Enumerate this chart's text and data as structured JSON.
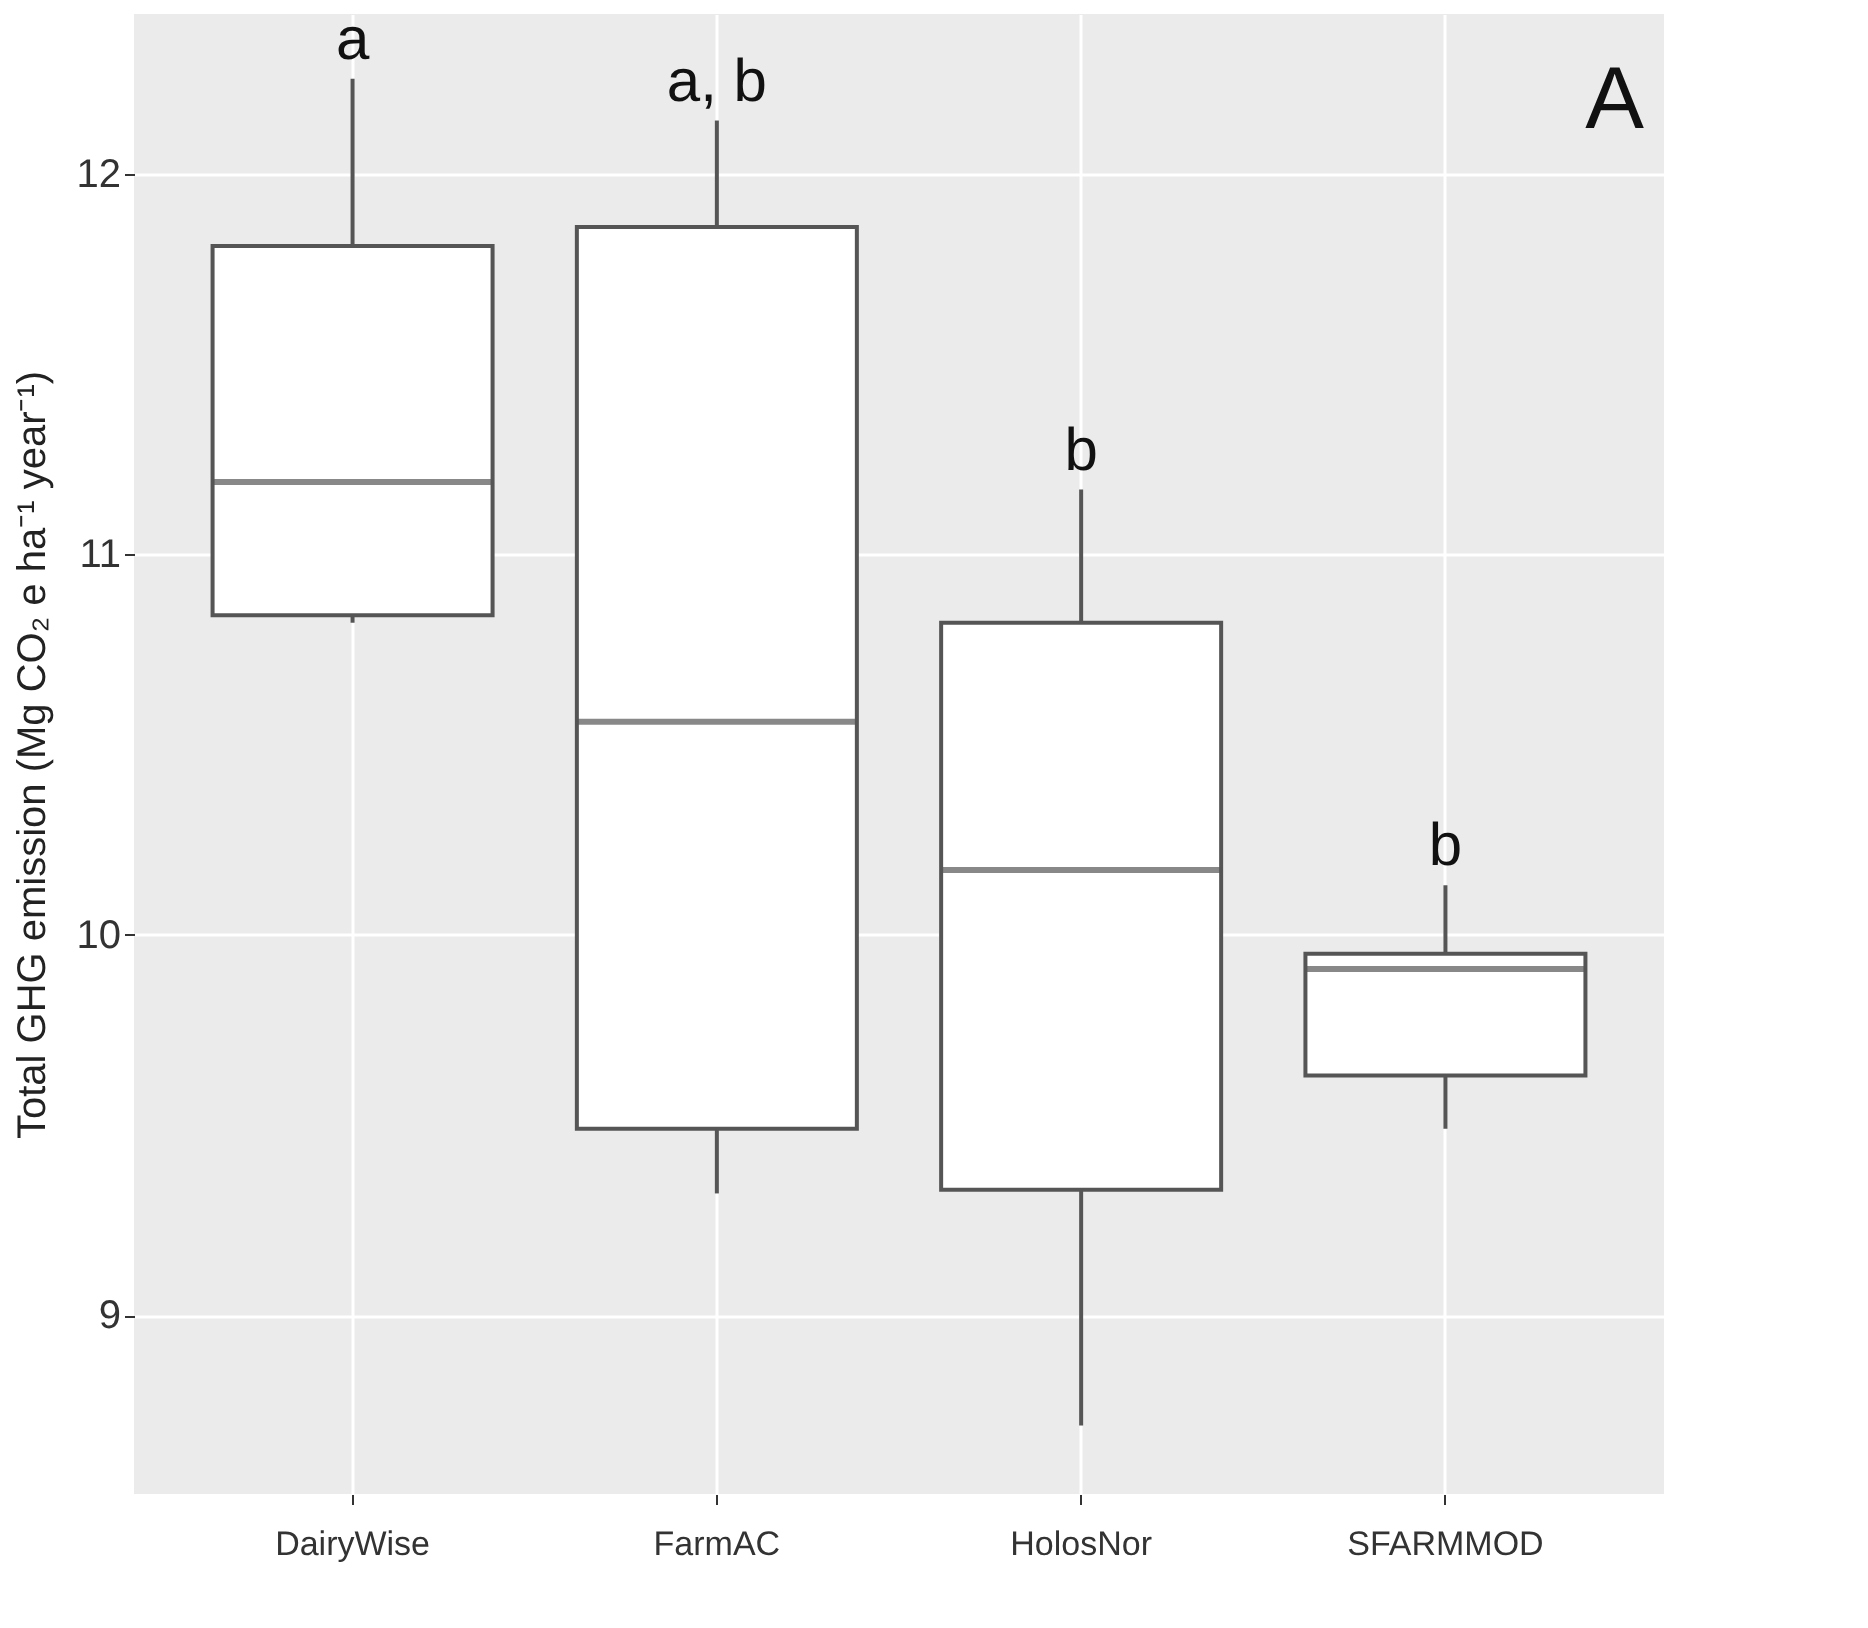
{
  "chart_data": {
    "type": "box",
    "ylabel": "Total GHG emission (Mg CO₂ e ha⁻¹ year⁻¹)",
    "categories": [
      "DairyWise",
      "FarmAC",
      "HolosNor",
      "SFARMMOD"
    ],
    "boxes": [
      {
        "low": 10.82,
        "q1": 10.84,
        "median": 11.19,
        "q3": 11.81,
        "high": 12.25
      },
      {
        "low": 9.32,
        "q1": 9.49,
        "median": 10.56,
        "q3": 11.86,
        "high": 12.14
      },
      {
        "low": 8.71,
        "q1": 9.33,
        "median": 10.17,
        "q3": 10.82,
        "high": 11.17
      },
      {
        "low": 9.49,
        "q1": 9.63,
        "median": 9.91,
        "q3": 9.95,
        "high": 10.13
      }
    ],
    "color": "#ffffff",
    "ylim": [
      8.53,
      12.42
    ],
    "yticks": [
      9,
      10,
      11,
      12
    ],
    "grid": true,
    "annotations": [
      {
        "text": "a",
        "x": "DairyWise",
        "y": 12.25
      },
      {
        "text": "a, b",
        "x": "FarmAC",
        "y": 12.14
      },
      {
        "text": "b",
        "x": "HolosNor",
        "y": 11.17
      },
      {
        "text": "b",
        "x": "SFARMMOD",
        "y": 10.13
      },
      "A"
    ]
  }
}
